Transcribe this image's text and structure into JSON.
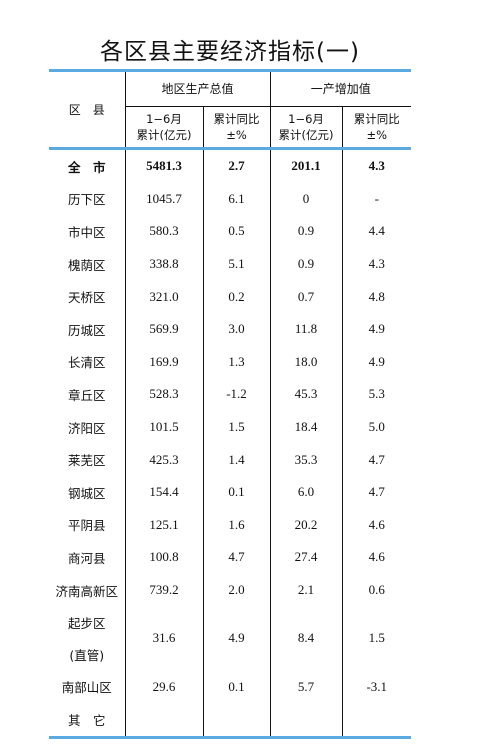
{
  "title": "各区县主要经济指标(一)",
  "header": {
    "region": "区　县",
    "gdp_group": "地区生产总值",
    "primary_group": "一产增加值",
    "cum_line1": "1−6月",
    "cum_line2": "累计(亿元)",
    "yoy_line1": "累计同比",
    "yoy_line2": "±%"
  },
  "rows": [
    {
      "name": "全　市",
      "gdp": "5481.3",
      "gdp_yoy": "2.7",
      "pri": "201.1",
      "pri_yoy": "4.3"
    },
    {
      "name": "历下区",
      "gdp": "1045.7",
      "gdp_yoy": "6.1",
      "pri": "0",
      "pri_yoy": "-"
    },
    {
      "name": "市中区",
      "gdp": "580.3",
      "gdp_yoy": "0.5",
      "pri": "0.9",
      "pri_yoy": "4.4"
    },
    {
      "name": "槐荫区",
      "gdp": "338.8",
      "gdp_yoy": "5.1",
      "pri": "0.9",
      "pri_yoy": "4.3"
    },
    {
      "name": "天桥区",
      "gdp": "321.0",
      "gdp_yoy": "0.2",
      "pri": "0.7",
      "pri_yoy": "4.8"
    },
    {
      "name": "历城区",
      "gdp": "569.9",
      "gdp_yoy": "3.0",
      "pri": "11.8",
      "pri_yoy": "4.9"
    },
    {
      "name": "长清区",
      "gdp": "169.9",
      "gdp_yoy": "1.3",
      "pri": "18.0",
      "pri_yoy": "4.9"
    },
    {
      "name": "章丘区",
      "gdp": "528.3",
      "gdp_yoy": "-1.2",
      "pri": "45.3",
      "pri_yoy": "5.3"
    },
    {
      "name": "济阳区",
      "gdp": "101.5",
      "gdp_yoy": "1.5",
      "pri": "18.4",
      "pri_yoy": "5.0"
    },
    {
      "name": "莱芜区",
      "gdp": "425.3",
      "gdp_yoy": "1.4",
      "pri": "35.3",
      "pri_yoy": "4.7"
    },
    {
      "name": "钢城区",
      "gdp": "154.4",
      "gdp_yoy": "0.1",
      "pri": "6.0",
      "pri_yoy": "4.7"
    },
    {
      "name": "平阴县",
      "gdp": "125.1",
      "gdp_yoy": "1.6",
      "pri": "20.2",
      "pri_yoy": "4.6"
    },
    {
      "name": "商河县",
      "gdp": "100.8",
      "gdp_yoy": "4.7",
      "pri": "27.4",
      "pri_yoy": "4.6"
    },
    {
      "name": "济南高新区",
      "gdp": "739.2",
      "gdp_yoy": "2.0",
      "pri": "2.1",
      "pri_yoy": "0.6"
    }
  ],
  "row_qibu": {
    "name1": "起步区",
    "name2": "(直管)",
    "gdp": "31.6",
    "gdp_yoy": "4.9",
    "pri": "8.4",
    "pri_yoy": "1.5"
  },
  "row_nanbu": {
    "name": "南部山区",
    "gdp": "29.6",
    "gdp_yoy": "0.1",
    "pri": "5.7",
    "pri_yoy": "-3.1"
  },
  "row_other": {
    "name": "其　它"
  }
}
